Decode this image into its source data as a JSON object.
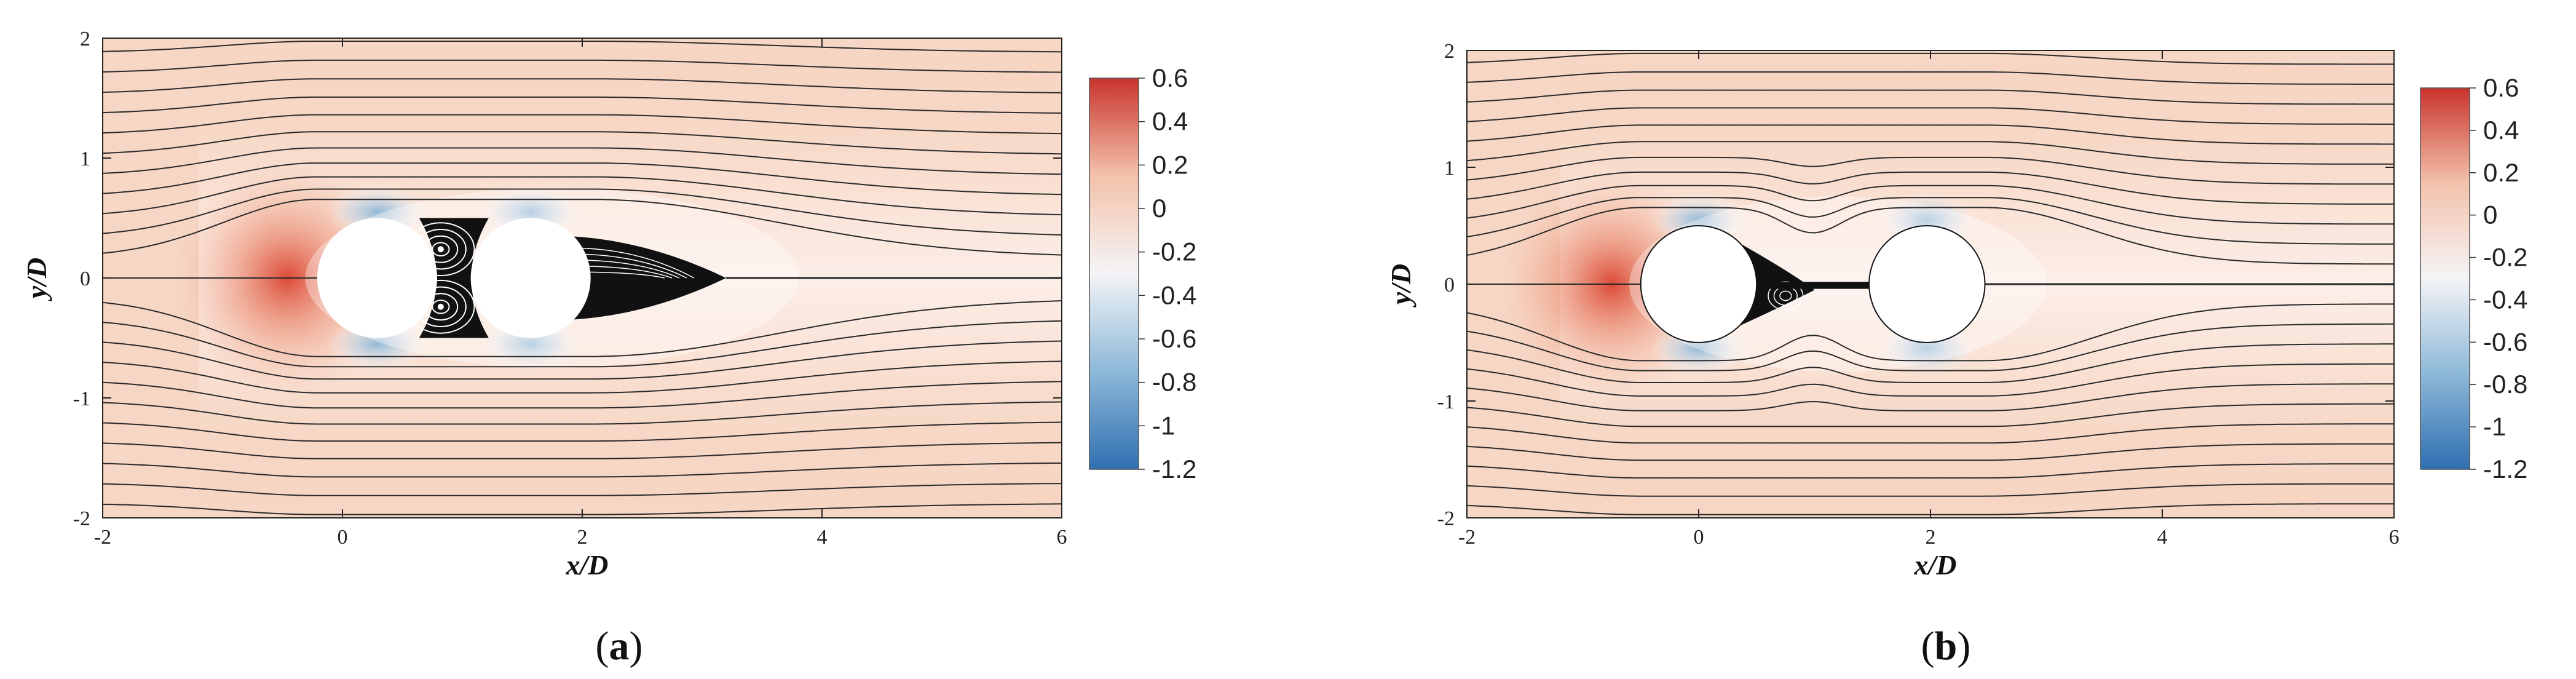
{
  "chart_data": [
    {
      "type": "heatmap",
      "panel": "a",
      "subcaption_open": "(",
      "subcaption_letter": "a",
      "subcaption_close": ")",
      "xlabel": "x/D",
      "ylabel": "y/D",
      "xlim": [
        -2,
        6
      ],
      "ylim": [
        -2,
        2
      ],
      "xticks": [
        -2,
        0,
        2,
        4,
        6
      ],
      "yticks": [
        -2,
        -1,
        0,
        1,
        2
      ],
      "colorbar": {
        "range": [
          -1.2,
          0.6
        ],
        "ticks": [
          0.6,
          0.4,
          0.2,
          0,
          -0.2,
          -0.4,
          -0.6,
          -0.8,
          -1,
          -1.2
        ],
        "colors": [
          "#2f6fb0",
          "#8db8d8",
          "#f4f4f6",
          "#f3c2ab",
          "#c8332c"
        ]
      },
      "cylinders": [
        {
          "x": 0.29,
          "y": 0,
          "d": 1
        },
        {
          "x": 1.57,
          "y": 0,
          "d": 1
        }
      ],
      "gap_vortex_centers": [
        {
          "x": 0.82,
          "y": 0.24
        },
        {
          "x": 0.82,
          "y": -0.24
        }
      ],
      "wake_recirculation_end_x": 3.2,
      "stagnation_point": {
        "x": -0.21,
        "y": 0
      }
    },
    {
      "type": "heatmap",
      "panel": "b",
      "subcaption_open": "(",
      "subcaption_letter": "b",
      "subcaption_close": ")",
      "xlabel": "x/D",
      "ylabel": "y/D",
      "xlim": [
        -2,
        6
      ],
      "ylim": [
        -2,
        2
      ],
      "xticks": [
        -2,
        0,
        2,
        4,
        6
      ],
      "yticks": [
        -2,
        -1,
        0,
        1,
        2
      ],
      "colorbar": {
        "range": [
          -1.2,
          0.6
        ],
        "ticks": [
          0.6,
          0.4,
          0.2,
          0,
          -0.2,
          -0.4,
          -0.6,
          -0.8,
          -1,
          -1.2
        ],
        "colors": [
          "#2f6fb0",
          "#8db8d8",
          "#f4f4f6",
          "#f3c2ab",
          "#c8332c"
        ]
      },
      "cylinders": [
        {
          "x": 0.0,
          "y": 0,
          "d": 1
        },
        {
          "x": 1.97,
          "y": 0,
          "d": 1
        }
      ],
      "gap_vortex_centers": [
        {
          "x": 0.75,
          "y": -0.1
        }
      ],
      "wake_recirculation_end_x": 2.4,
      "stagnation_point": {
        "x": -0.5,
        "y": 0
      }
    }
  ]
}
